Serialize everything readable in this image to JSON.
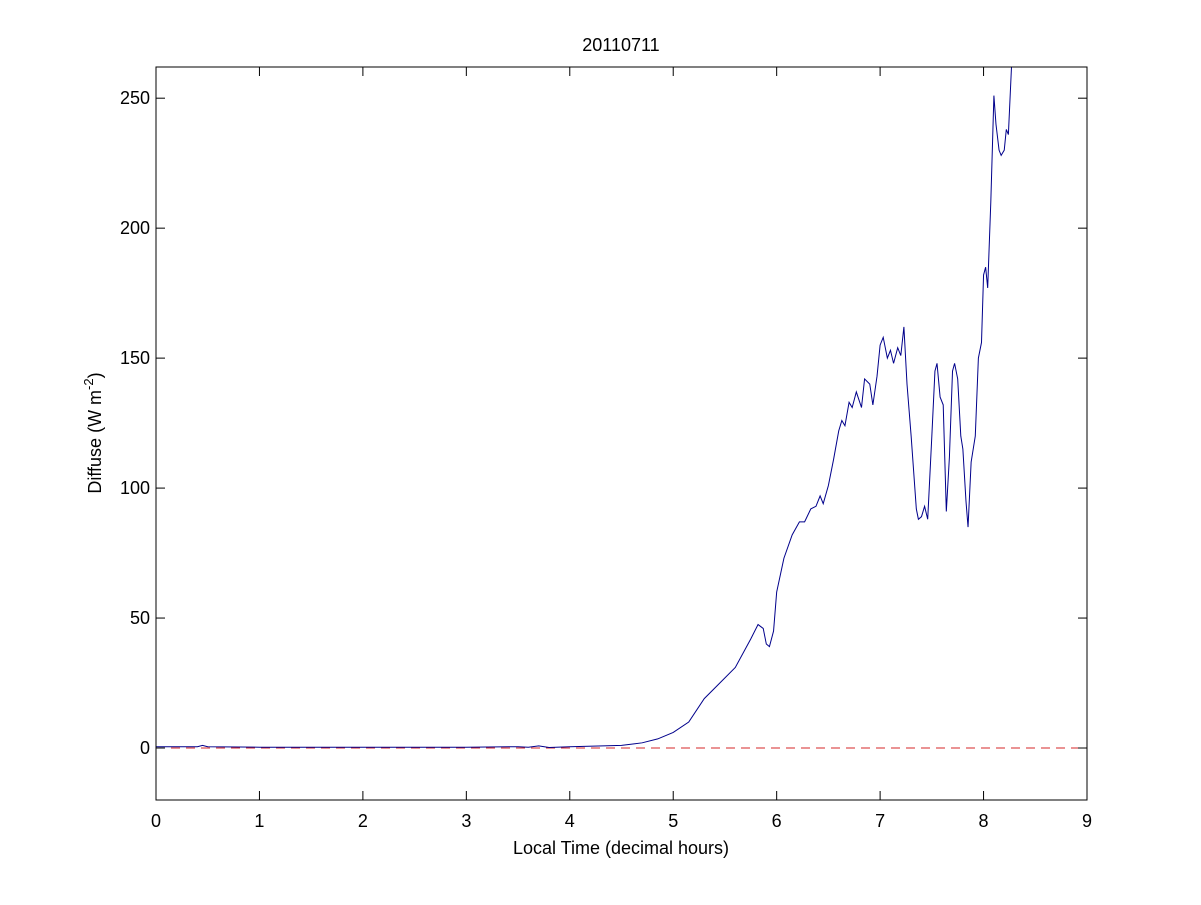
{
  "chart_data": {
    "type": "line",
    "title": "20110711",
    "xlabel": "Local Time (decimal hours)",
    "ylabel": [
      "Diffuse (W m",
      "-2",
      ")"
    ],
    "xlim": [
      0,
      9
    ],
    "ylim": [
      -20,
      262
    ],
    "xticks": [
      0,
      1,
      2,
      3,
      4,
      5,
      6,
      7,
      8,
      9
    ],
    "yticks": [
      0,
      50,
      100,
      150,
      200,
      250
    ],
    "reference_line": {
      "value": 0,
      "color": "#d62728"
    },
    "series": [
      {
        "color": "#00008b",
        "x": [
          0,
          0.4,
          0.45,
          0.5,
          1,
          2,
          3,
          3.5,
          3.6,
          3.7,
          3.8,
          4,
          4.5,
          4.7,
          4.85,
          5,
          5.15,
          5.3,
          5.4,
          5.6,
          5.75,
          5.82,
          5.87,
          5.9,
          5.93,
          5.97,
          6.0,
          6.07,
          6.15,
          6.22,
          6.27,
          6.33,
          6.38,
          6.42,
          6.45,
          6.5,
          6.55,
          6.6,
          6.63,
          6.66,
          6.7,
          6.73,
          6.77,
          6.82,
          6.85,
          6.9,
          6.93,
          6.97,
          7.0,
          7.03,
          7.07,
          7.1,
          7.13,
          7.17,
          7.2,
          7.23,
          7.26,
          7.3,
          7.35,
          7.37,
          7.4,
          7.43,
          7.46,
          7.5,
          7.53,
          7.55,
          7.58,
          7.61,
          7.64,
          7.67,
          7.7,
          7.72,
          7.75,
          7.78,
          7.8,
          7.83,
          7.85,
          7.88,
          7.92,
          7.95,
          7.98,
          8.0,
          8.02,
          8.04,
          8.07,
          8.1,
          8.12,
          8.15,
          8.17,
          8.2,
          8.22,
          8.24,
          8.27
        ],
        "values": [
          0.5,
          0.5,
          1,
          0.5,
          0.3,
          0.3,
          0.3,
          0.5,
          0.3,
          0.8,
          0.2,
          0.5,
          1,
          2,
          3.5,
          6,
          10,
          19,
          23,
          31,
          42,
          47.5,
          46,
          40,
          39,
          45,
          60,
          73,
          82,
          87,
          87,
          92,
          93,
          97,
          94,
          101,
          111,
          122,
          126,
          124,
          133,
          131,
          137,
          131,
          142,
          140,
          132,
          143,
          155,
          158,
          150,
          153,
          148,
          154,
          151,
          162,
          140,
          120,
          92,
          88,
          89,
          93,
          88,
          120,
          145,
          148,
          135,
          132,
          91,
          112,
          145,
          148,
          142,
          120,
          115,
          95,
          85,
          110,
          120,
          150,
          156,
          182,
          185,
          177,
          210,
          251,
          240,
          230,
          228,
          230,
          238,
          236,
          262
        ]
      }
    ]
  }
}
